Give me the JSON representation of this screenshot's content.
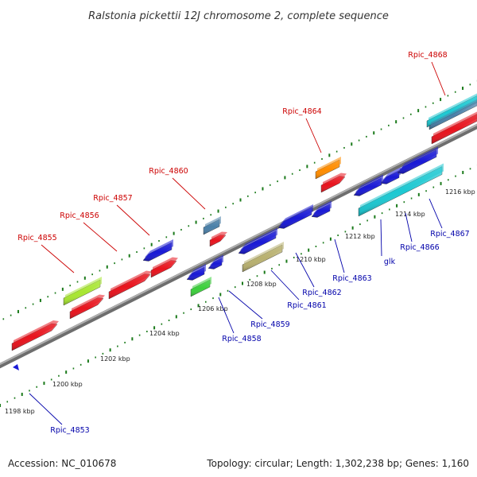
{
  "title": "Ralstonia pickettii 12J chromosome 2, complete sequence",
  "accession_text": "Accession: NC_010678",
  "info_text": "Topology: circular; Length: 1,302,238 bp; Genes: 1,160",
  "colors": {
    "forward_label": "#cc0000",
    "reverse_label": "#0000aa",
    "tick_green": "#1a7a1a",
    "backbone": "#8a8a8a"
  },
  "scale_ticks": [
    {
      "label": "1198 kbp"
    },
    {
      "label": "1200 kbp"
    },
    {
      "label": "1202 kbp"
    },
    {
      "label": "1204 kbp"
    },
    {
      "label": "1206 kbp"
    },
    {
      "label": "1208 kbp"
    },
    {
      "label": "1210 kbp"
    },
    {
      "label": "1212 kbp"
    },
    {
      "label": "1214 kbp"
    },
    {
      "label": "1216 kbp"
    }
  ],
  "genes_forward": [
    {
      "name": "Rpic_4855",
      "color": "#e8141e"
    },
    {
      "name": "Rpic_4856",
      "color": "#e8141e"
    },
    {
      "name": "Rpic_4857",
      "color": "#e8141e"
    },
    {
      "name": "Rpic_4860",
      "color": "#e8141e"
    },
    {
      "name": "Rpic_4864",
      "color": "#e8141e"
    },
    {
      "name": "Rpic_4868",
      "color": "#e8141e"
    }
  ],
  "genes_reverse": [
    {
      "name": "Rpic_4853",
      "color": "#1a1ad6"
    },
    {
      "name": "Rpic_4858",
      "color": "#1a1ad6"
    },
    {
      "name": "Rpic_4859",
      "color": "#1a1ad6"
    },
    {
      "name": "Rpic_4861",
      "color": "#1a1ad6"
    },
    {
      "name": "Rpic_4862",
      "color": "#1a1ad6"
    },
    {
      "name": "Rpic_4863",
      "color": "#1a1ad6"
    },
    {
      "name": "glk",
      "color": "#1a1ad6"
    },
    {
      "name": "Rpic_4866",
      "color": "#1ec8d2"
    },
    {
      "name": "Rpic_4867",
      "color": "#1ec8d2"
    }
  ]
}
